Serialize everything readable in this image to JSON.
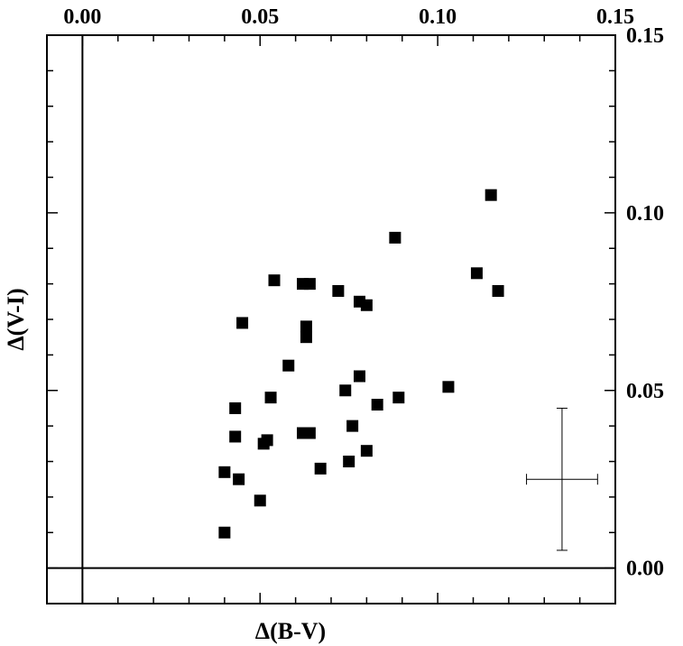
{
  "chart_data": {
    "type": "scatter",
    "title": "",
    "xlabel": "Δ(B-V)",
    "ylabel": "Δ(V-I)",
    "xlim": [
      -0.01,
      0.15
    ],
    "ylim": [
      -0.01,
      0.15
    ],
    "x_ticks": [
      "0.00",
      "0.05",
      "0.10",
      "0.15"
    ],
    "y_ticks": [
      "0.00",
      "0.05",
      "0.10",
      "0.15"
    ],
    "x_tick_values": [
      0.0,
      0.05,
      0.1,
      0.15
    ],
    "y_tick_values": [
      0.0,
      0.05,
      0.1,
      0.15
    ],
    "x_axis_position": "top",
    "y_axis_position": "right",
    "reference_lines": {
      "x": 0.0,
      "y": 0.0
    },
    "marker": "filled-square",
    "marker_color": "#000000",
    "grid": false,
    "series": [
      {
        "points": [
          {
            "x": 0.04,
            "y": 0.01
          },
          {
            "x": 0.04,
            "y": 0.027
          },
          {
            "x": 0.044,
            "y": 0.025
          },
          {
            "x": 0.043,
            "y": 0.037
          },
          {
            "x": 0.043,
            "y": 0.045
          },
          {
            "x": 0.045,
            "y": 0.069
          },
          {
            "x": 0.05,
            "y": 0.019
          },
          {
            "x": 0.051,
            "y": 0.035
          },
          {
            "x": 0.052,
            "y": 0.036
          },
          {
            "x": 0.053,
            "y": 0.048
          },
          {
            "x": 0.054,
            "y": 0.081
          },
          {
            "x": 0.058,
            "y": 0.057
          },
          {
            "x": 0.062,
            "y": 0.038
          },
          {
            "x": 0.062,
            "y": 0.08
          },
          {
            "x": 0.063,
            "y": 0.065
          },
          {
            "x": 0.063,
            "y": 0.068
          },
          {
            "x": 0.064,
            "y": 0.038
          },
          {
            "x": 0.064,
            "y": 0.08
          },
          {
            "x": 0.067,
            "y": 0.028
          },
          {
            "x": 0.072,
            "y": 0.078
          },
          {
            "x": 0.074,
            "y": 0.05
          },
          {
            "x": 0.075,
            "y": 0.03
          },
          {
            "x": 0.076,
            "y": 0.04
          },
          {
            "x": 0.078,
            "y": 0.054
          },
          {
            "x": 0.078,
            "y": 0.075
          },
          {
            "x": 0.08,
            "y": 0.033
          },
          {
            "x": 0.08,
            "y": 0.074
          },
          {
            "x": 0.083,
            "y": 0.046
          },
          {
            "x": 0.088,
            "y": 0.093
          },
          {
            "x": 0.089,
            "y": 0.048
          },
          {
            "x": 0.103,
            "y": 0.051
          },
          {
            "x": 0.111,
            "y": 0.083
          },
          {
            "x": 0.115,
            "y": 0.105
          },
          {
            "x": 0.117,
            "y": 0.078
          }
        ]
      }
    ],
    "error_bar_example": {
      "x": 0.135,
      "y": 0.025,
      "x_err": 0.01,
      "y_err": 0.02
    }
  }
}
